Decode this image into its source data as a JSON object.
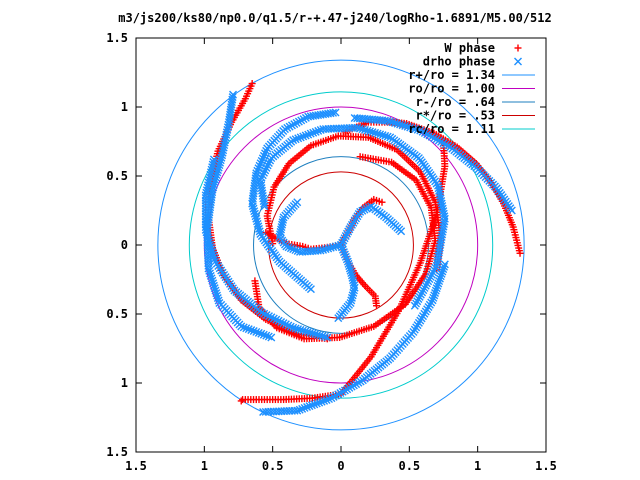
{
  "chart_data": {
    "type": "scatter",
    "title": "m3/js200/ks80/np0.0/q1.5/r-+.47-j240/logRho-1.6891/M5.00/512",
    "xlabel": "",
    "ylabel": "",
    "xlim": [
      -1.5,
      1.5
    ],
    "ylim": [
      -1.5,
      1.5
    ],
    "grid": false,
    "legend_position": "top-right",
    "x_ticks": [
      {
        "value": -1.5,
        "label": "1.5"
      },
      {
        "value": -1.0,
        "label": "1"
      },
      {
        "value": -0.5,
        "label": "0.5"
      },
      {
        "value": 0.0,
        "label": "0"
      },
      {
        "value": 0.5,
        "label": "0.5"
      },
      {
        "value": 1.0,
        "label": "1"
      },
      {
        "value": 1.5,
        "label": "1.5"
      }
    ],
    "y_ticks": [
      {
        "value": 1.5,
        "label": "1.5"
      },
      {
        "value": 1.0,
        "label": "1"
      },
      {
        "value": 0.5,
        "label": "0.5"
      },
      {
        "value": 0.0,
        "label": "0"
      },
      {
        "value": -0.5,
        "label": "0.5"
      },
      {
        "value": -1.0,
        "label": "1"
      },
      {
        "value": -1.5,
        "label": "1.5"
      }
    ],
    "point_series": [
      {
        "name": "W phase",
        "color": "#ff0000",
        "marker": "plus",
        "spirals": [
          {
            "x": [
              0.0,
              -0.12,
              -0.22,
              -0.28,
              -0.4,
              -0.55
            ],
            "y": [
              0.0,
              -0.02,
              -0.03,
              -0.01,
              0.01,
              0.09
            ]
          },
          {
            "x": [
              0.0,
              0.05,
              0.1,
              0.16,
              0.24,
              0.3
            ],
            "y": [
              0.0,
              0.09,
              0.19,
              0.27,
              0.33,
              0.31
            ]
          },
          {
            "x": [
              0.0,
              0.05,
              0.11,
              0.18,
              0.25,
              0.26
            ],
            "y": [
              0.0,
              -0.12,
              -0.22,
              -0.3,
              -0.37,
              -0.44
            ]
          },
          {
            "x": [
              -0.5,
              -0.54,
              -0.49,
              -0.38,
              -0.22,
              -0.02,
              0.2,
              0.41,
              0.58,
              0.69,
              0.73,
              0.7
            ],
            "y": [
              0.01,
              0.21,
              0.42,
              0.59,
              0.72,
              0.79,
              0.78,
              0.69,
              0.53,
              0.31,
              0.05,
              -0.18
            ]
          },
          {
            "x": [
              0.14,
              0.37,
              0.55,
              0.66,
              0.69,
              0.62,
              0.47,
              0.24,
              -0.01,
              -0.27,
              -0.47,
              -0.6,
              -0.63
            ],
            "y": [
              0.64,
              0.6,
              0.47,
              0.27,
              0.03,
              -0.21,
              -0.43,
              -0.59,
              -0.67,
              -0.68,
              -0.6,
              -0.45,
              -0.26
            ]
          },
          {
            "x": [
              0.03,
              0.2,
              0.36,
              0.52,
              0.66,
              0.75,
              0.76,
              0.7,
              0.58,
              0.42,
              0.22,
              0.0,
              -0.21,
              -0.42,
              -0.58,
              -0.72,
              -0.73
            ],
            "y": [
              0.82,
              0.89,
              0.89,
              0.86,
              0.81,
              0.74,
              0.57,
              0.22,
              -0.13,
              -0.48,
              -0.81,
              -1.08,
              -1.11,
              -1.12,
              -1.12,
              -1.12,
              -1.13
            ]
          },
          {
            "x": [
              -0.65,
              -0.7,
              -0.8,
              -0.9,
              -0.96,
              -0.97,
              -0.94,
              -0.86,
              -0.73,
              -0.55,
              -0.33,
              -0.1
            ],
            "y": [
              1.17,
              1.06,
              0.89,
              0.68,
              0.44,
              0.2,
              -0.02,
              -0.22,
              -0.4,
              -0.54,
              -0.64,
              -0.68
            ]
          },
          {
            "x": [
              0.28,
              0.48,
              0.68,
              0.85,
              0.99,
              1.1,
              1.19,
              1.26,
              1.31
            ],
            "y": [
              0.9,
              0.88,
              0.81,
              0.71,
              0.59,
              0.45,
              0.3,
              0.13,
              -0.06
            ]
          }
        ]
      },
      {
        "name": "drho phase",
        "color": "#1e90ff",
        "marker": "cross",
        "spirals": [
          {
            "x": [
              0.0,
              -0.15,
              -0.3,
              -0.4,
              -0.45,
              -0.42,
              -0.32
            ],
            "y": [
              0.0,
              -0.04,
              -0.05,
              -0.01,
              0.06,
              0.2,
              0.31
            ]
          },
          {
            "x": [
              0.0,
              0.07,
              0.14,
              0.22,
              0.33,
              0.44
            ],
            "y": [
              0.0,
              0.13,
              0.24,
              0.28,
              0.2,
              0.1
            ]
          },
          {
            "x": [
              0.0,
              0.05,
              0.08,
              0.1,
              0.07,
              -0.02
            ],
            "y": [
              0.0,
              -0.12,
              -0.22,
              -0.31,
              -0.42,
              -0.53
            ]
          },
          {
            "x": [
              -0.56,
              -0.59,
              -0.51,
              -0.35,
              -0.13,
              0.12,
              0.36,
              0.57,
              0.71,
              0.76,
              0.7,
              0.54
            ],
            "y": [
              0.28,
              0.47,
              0.63,
              0.76,
              0.84,
              0.85,
              0.78,
              0.63,
              0.43,
              0.19,
              -0.15,
              -0.44
            ]
          },
          {
            "x": [
              -0.04,
              -0.24,
              -0.41,
              -0.54,
              -0.62,
              -0.65,
              -0.59,
              -0.45,
              -0.22
            ],
            "y": [
              0.96,
              0.93,
              0.84,
              0.7,
              0.52,
              0.3,
              0.08,
              -0.12,
              -0.32
            ]
          },
          {
            "x": [
              -0.93,
              -0.99,
              -0.99,
              -0.92,
              -0.78,
              -0.58,
              -0.35,
              -0.1
            ],
            "y": [
              0.62,
              0.36,
              0.11,
              -0.12,
              -0.33,
              -0.49,
              -0.6,
              -0.67
            ]
          },
          {
            "x": [
              -0.79,
              -0.82,
              -0.87,
              -0.94,
              -0.98,
              -0.97,
              -0.89,
              -0.73,
              -0.51
            ],
            "y": [
              1.09,
              0.89,
              0.65,
              0.4,
              0.11,
              -0.17,
              -0.42,
              -0.59,
              -0.67
            ]
          },
          {
            "x": [
              -0.57,
              -0.32,
              -0.07,
              0.16,
              0.36,
              0.53,
              0.67,
              0.76
            ],
            "y": [
              -1.21,
              -1.2,
              -1.11,
              -0.98,
              -0.82,
              -0.63,
              -0.4,
              -0.14
            ]
          },
          {
            "x": [
              0.1,
              0.34,
              0.58,
              0.8,
              0.99,
              1.14,
              1.25
            ],
            "y": [
              0.92,
              0.9,
              0.83,
              0.71,
              0.56,
              0.41,
              0.25
            ]
          }
        ]
      }
    ],
    "circle_series": [
      {
        "name": "r+/ro = 1.34",
        "color": "#1e90ff",
        "radius": 1.34
      },
      {
        "name": "ro/ro = 1.00",
        "color": "#c000c0",
        "radius": 1.0
      },
      {
        "name": "r-/ro = .64",
        "color": "#1e7fbf",
        "radius": 0.64
      },
      {
        "name": "r*/ro = .53",
        "color": "#cc0000",
        "radius": 0.53
      },
      {
        "name": "rc/ro = 1.11",
        "color": "#00cccc",
        "radius": 1.11
      }
    ],
    "legend": [
      {
        "label": "W phase",
        "marker": "plus",
        "color": "#ff0000"
      },
      {
        "label": "drho phase",
        "marker": "cross",
        "color": "#1e90ff"
      },
      {
        "label": "r+/ro = 1.34",
        "marker": "line",
        "color": "#1e90ff"
      },
      {
        "label": "ro/ro = 1.00",
        "marker": "line",
        "color": "#c000c0"
      },
      {
        "label": "r-/ro = .64",
        "marker": "line",
        "color": "#1e7fbf"
      },
      {
        "label": "r*/ro = .53",
        "marker": "line",
        "color": "#cc0000"
      },
      {
        "label": "rc/ro = 1.11",
        "marker": "line",
        "color": "#00cccc"
      }
    ]
  }
}
